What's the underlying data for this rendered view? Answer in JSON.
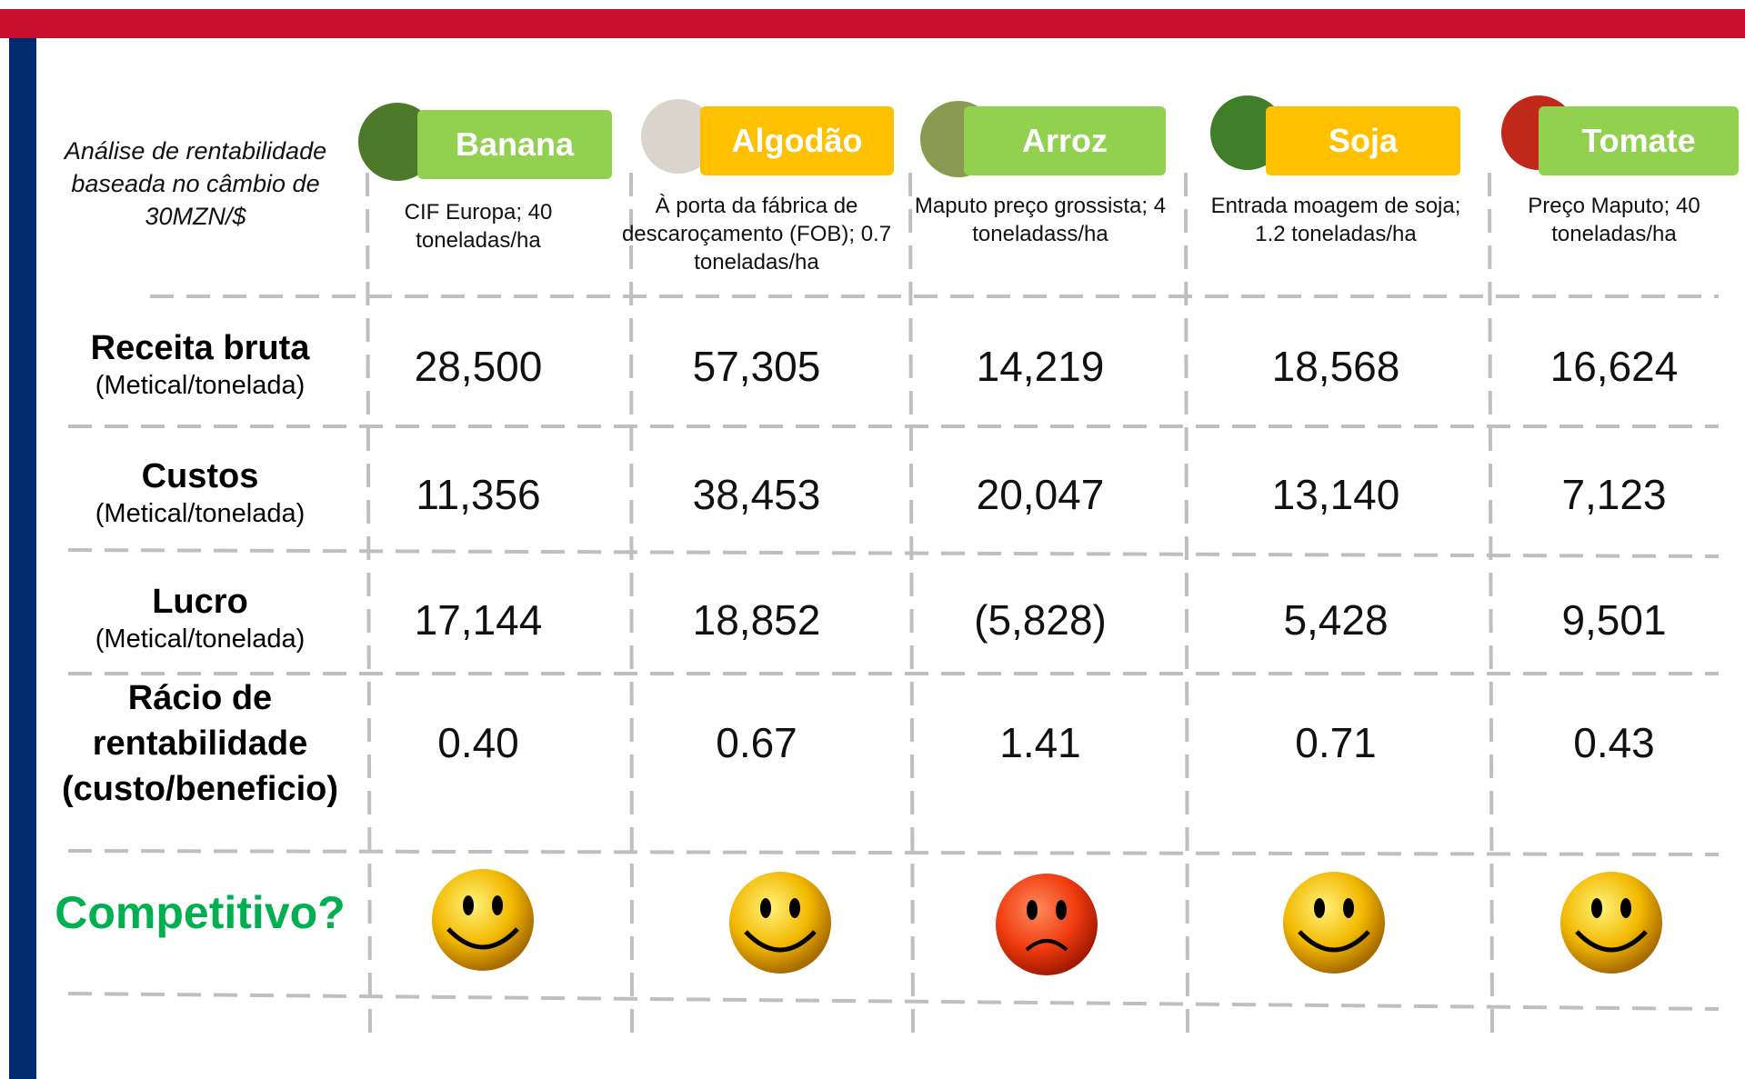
{
  "table": {
    "intro": "Análise de rentabilidade baseada no câmbio de 30MZN/$",
    "columns": [
      {
        "name": "Banana",
        "note": "CIF Europa; 40 toneladas/ha"
      },
      {
        "name": "Algodão",
        "note": "À porta da fábrica de descaroçamento (FOB); 0.7 toneladas/ha"
      },
      {
        "name": "Arroz",
        "note": "Maputo preço grossista; 4 toneladass/ha"
      },
      {
        "name": "Soja",
        "note": "Entrada moagem de soja; 1.2 toneladas/ha"
      },
      {
        "name": "Tomate",
        "note": "Preço Maputo; 40 toneladas/ha"
      }
    ],
    "rows": [
      {
        "label": "Receita bruta",
        "unit": "(Metical/tonelada)",
        "values": [
          "28,500",
          "57,305",
          "14,219",
          "18,568",
          "16,624"
        ]
      },
      {
        "label": "Custos",
        "unit": "(Metical/tonelada)",
        "values": [
          "11,356",
          "38,453",
          "20,047",
          "13,140",
          "7,123"
        ]
      },
      {
        "label": "Lucro",
        "unit": "(Metical/tonelada)",
        "values": [
          "17,144",
          "18,852",
          "(5,828)",
          "5,428",
          "9,501"
        ]
      },
      {
        "label": "Rácio de rentabilidade (custo/beneficio)",
        "values": [
          "0.40",
          "0.67",
          "1.41",
          "0.71",
          "0.43"
        ]
      }
    ],
    "verdict": "Competitivo?"
  }
}
